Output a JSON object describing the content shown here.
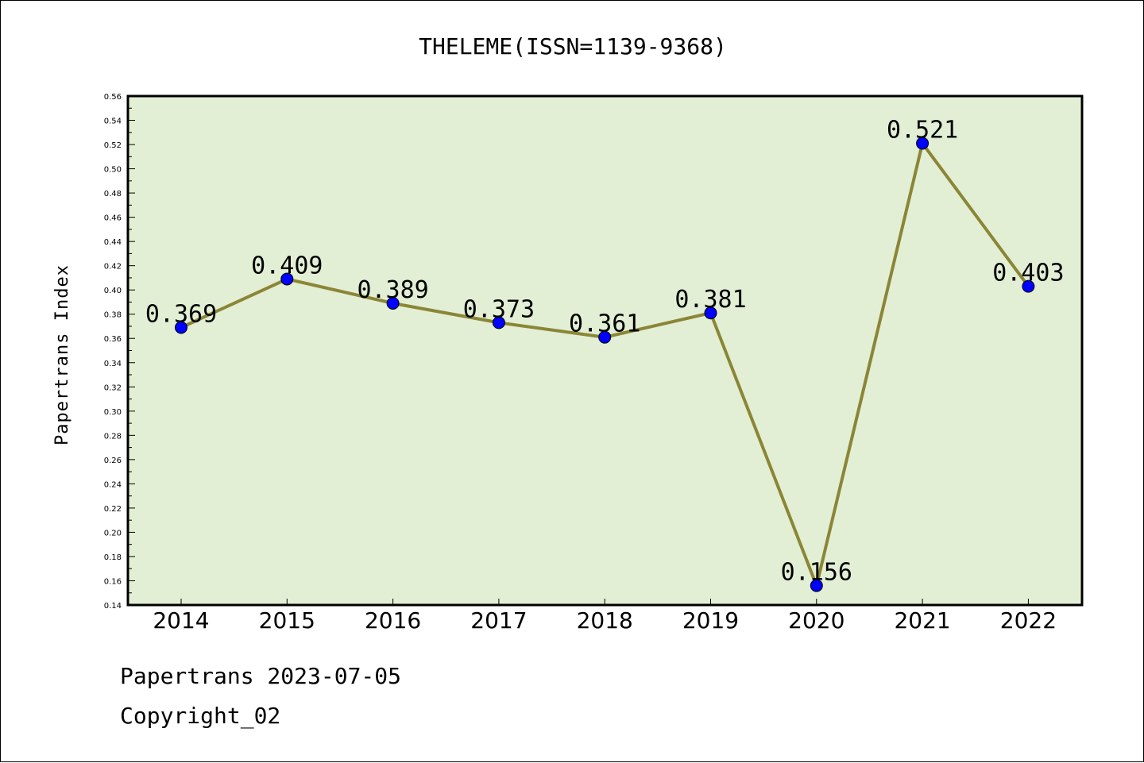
{
  "chart_data": {
    "type": "line",
    "title": "THELEME(ISSN=1139-9368)",
    "xlabel": "",
    "ylabel": "Papertrans Index",
    "categories": [
      "2014",
      "2015",
      "2016",
      "2017",
      "2018",
      "2019",
      "2020",
      "2021",
      "2022"
    ],
    "series": [
      {
        "values": [
          0.369,
          0.409,
          0.389,
          0.373,
          0.361,
          0.381,
          0.156,
          0.521,
          0.403
        ],
        "data_labels": [
          "0.369",
          "0.409",
          "0.389",
          "0.373",
          "0.361",
          "0.381",
          "0.156",
          "0.521",
          "0.403"
        ]
      }
    ],
    "ylim": [
      0.14,
      0.56
    ],
    "y_ticks": [
      "0.14",
      "0.16",
      "0.18",
      "0.20",
      "0.22",
      "0.24",
      "0.26",
      "0.28",
      "0.30",
      "0.32",
      "0.34",
      "0.36",
      "0.38",
      "0.40",
      "0.42",
      "0.44",
      "0.46",
      "0.48",
      "0.50",
      "0.52",
      "0.54",
      "0.56"
    ],
    "grid": false,
    "colors": {
      "plot_background": "#e2efd5",
      "line": "#8b8635",
      "marker": "#0000ff"
    }
  },
  "footer": {
    "line1": "Papertrans 2023-07-05",
    "line2": "Copyright_02"
  }
}
